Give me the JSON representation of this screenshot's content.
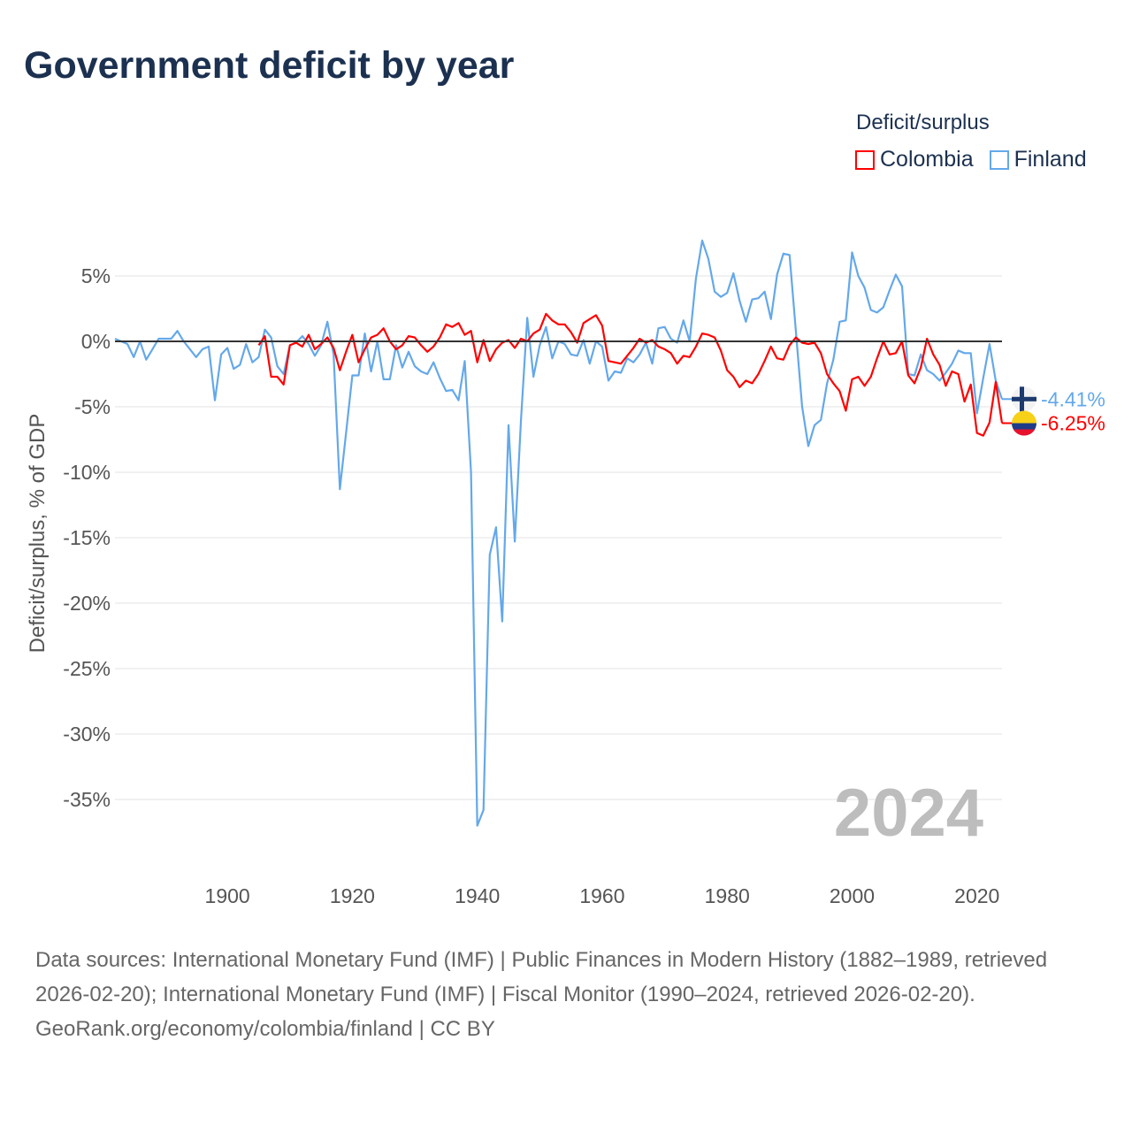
{
  "title": "Government deficit by year",
  "legend": {
    "title": "Deficit/surplus",
    "items": [
      {
        "label": "Colombia",
        "color": "#ff0000"
      },
      {
        "label": "Finland",
        "color": "#64a8ea"
      }
    ]
  },
  "footer": {
    "sources": "Data sources: International Monetary Fund (IMF) | Public Finances in Modern History (1882–1989, retrieved 2026-02-20); International Monetary Fund (IMF) | Fiscal Monitor (1990–2024, retrieved 2026-02-20).",
    "credit": "GeoRank.org/economy/colombia/finland | CC BY"
  },
  "chart_data": {
    "type": "line",
    "title": "Government deficit by year",
    "ylabel": "Deficit/surplus, % of GDP",
    "xlabel": "",
    "current_year_label": "2024",
    "xlim": [
      1882,
      2024
    ],
    "ylim": [
      -39,
      8.5
    ],
    "xticks": [
      1900,
      1920,
      1940,
      1960,
      1980,
      2000,
      2020
    ],
    "yticks": [
      5,
      0,
      -5,
      -10,
      -15,
      -20,
      -25,
      -30,
      -35
    ],
    "ytick_labels": [
      "5%",
      "0%",
      "-5%",
      "-10%",
      "-15%",
      "-20%",
      "-25%",
      "-30%",
      "-35%"
    ],
    "grid": true,
    "series": [
      {
        "name": "Finland",
        "color": "#64a8ea",
        "start_year": 1882,
        "end_label": "-4.41%",
        "values": [
          0.2,
          0,
          -0.2,
          -1.2,
          0,
          -1.4,
          -0.6,
          0.2,
          0.2,
          0.2,
          0.8,
          0,
          -0.6,
          -1.2,
          -0.6,
          -0.4,
          -4.5,
          -1,
          -0.5,
          -2.1,
          -1.8,
          -0.2,
          -1.6,
          -1.2,
          0.9,
          0.3,
          -1.9,
          -2.5,
          -0.3,
          -0.1,
          0.4,
          -0.2,
          -1.1,
          -0.3,
          1.5,
          -1,
          -11.3,
          -7,
          -2.6,
          -2.6,
          0.6,
          -2.3,
          0,
          -2.9,
          -2.9,
          -0.3,
          -2,
          -0.8,
          -1.9,
          -2.3,
          -2.5,
          -1.6,
          -2.8,
          -3.8,
          -3.7,
          -4.5,
          -1.5,
          -10,
          -37,
          -35.8,
          -16.3,
          -14.2,
          -21.4,
          -6.4,
          -15.3,
          -6,
          1.8,
          -2.7,
          -0.3,
          1.1,
          -1.3,
          0,
          -0.2,
          -1,
          -1.1,
          0.1,
          -1.7,
          0,
          -0.4,
          -3,
          -2.3,
          -2.4,
          -1.3,
          -1.6,
          -1,
          -0.1,
          -1.7,
          1,
          1.1,
          0.2,
          -0.1,
          1.6,
          0,
          4.8,
          7.7,
          6.3,
          3.8,
          3.4,
          3.7,
          5.2,
          3.1,
          1.5,
          3.2,
          3.3,
          3.8,
          1.7,
          5.1,
          6.7,
          6.6,
          0.8,
          -5,
          -8,
          -6.4,
          -6,
          -3.2,
          -1.4,
          1.5,
          1.6,
          6.8,
          5,
          4.1,
          2.4,
          2.2,
          2.6,
          3.9,
          5.1,
          4.2,
          -2.5,
          -2.6,
          -1,
          -2.2,
          -2.5,
          -3,
          -2.4,
          -1.7,
          -0.7,
          -0.9,
          -0.9,
          -5.5,
          -2.8,
          -0.2,
          -3,
          -4.41
        ]
      },
      {
        "name": "Colombia",
        "color": "#ff0000",
        "start_year": 1905,
        "end_label": "-6.25%",
        "values": [
          -0.3,
          0.4,
          -2.7,
          -2.7,
          -3.3,
          -0.3,
          -0.1,
          -0.4,
          0.5,
          -0.6,
          -0.2,
          0.3,
          -0.5,
          -2.2,
          -0.8,
          0.5,
          -1.6,
          -0.6,
          0.3,
          0.5,
          1,
          0,
          -0.6,
          -0.3,
          0.4,
          0.3,
          -0.3,
          -0.8,
          -0.4,
          0.3,
          1.3,
          1.1,
          1.4,
          0.5,
          0.8,
          -1.6,
          0.1,
          -1.5,
          -0.6,
          -0.1,
          0.1,
          -0.5,
          0.2,
          0,
          0.6,
          0.9,
          2.1,
          1.6,
          1.3,
          1.3,
          0.7,
          -0.1,
          1.4,
          1.7,
          2,
          1.2,
          -1.5,
          -1.6,
          -1.7,
          -1.1,
          -0.5,
          0.2,
          -0.1,
          0.1,
          -0.4,
          -0.6,
          -0.9,
          -1.7,
          -1.1,
          -1.2,
          -0.4,
          0.6,
          0.5,
          0.3,
          -0.7,
          -2.2,
          -2.7,
          -3.5,
          -3,
          -3.2,
          -2.5,
          -1.5,
          -0.4,
          -1.3,
          -1.4,
          -0.3,
          0.3,
          -0.1,
          -0.2,
          -0.1,
          -0.9,
          -2.5,
          -3.2,
          -3.8,
          -5.3,
          -2.9,
          -2.7,
          -3.4,
          -2.7,
          -1.3,
          0,
          -1,
          -0.9,
          0,
          -2.6,
          -3.2,
          -2,
          0.2,
          -1,
          -1.8,
          -3.4,
          -2.3,
          -2.5,
          -4.6,
          -3.3,
          -7,
          -7.2,
          -6.2,
          -3.1,
          -6.25
        ]
      }
    ]
  }
}
